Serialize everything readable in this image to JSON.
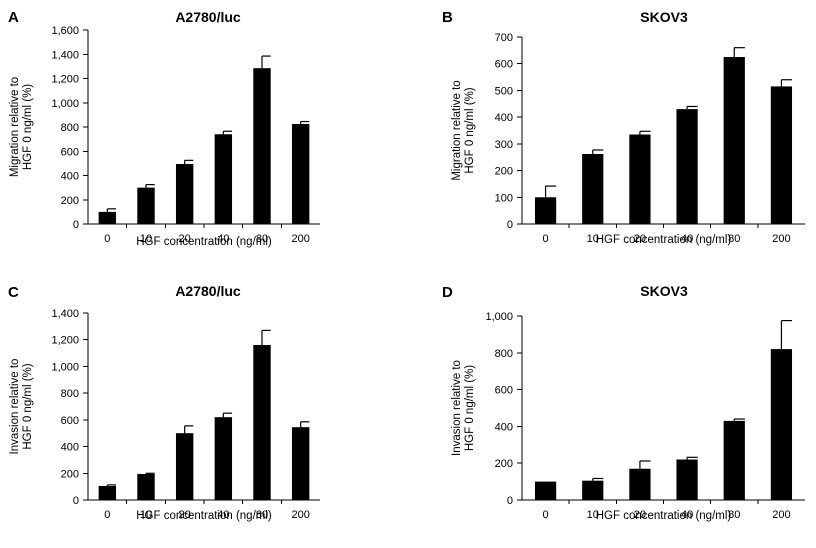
{
  "chart_data": [
    {
      "panel": "A",
      "type": "bar",
      "title": "A2780/luc",
      "xlabel": "HGF concentration (ng/ml)",
      "ylabel": [
        "Migration relative to",
        "HGF 0 ng/ml (%)"
      ],
      "categories": [
        "0",
        "10",
        "20",
        "40",
        "80",
        "200"
      ],
      "values": [
        100,
        300,
        495,
        740,
        1285,
        825
      ],
      "errors": [
        25,
        25,
        30,
        25,
        100,
        20
      ],
      "ylim": [
        0,
        1600
      ],
      "yticks": [
        0,
        200,
        400,
        600,
        800,
        1000,
        1200,
        1400,
        1600
      ],
      "ytick_labels": [
        "0",
        "200",
        "400",
        "600",
        "800",
        "1,000",
        "1,200",
        "1,400",
        "1,600"
      ]
    },
    {
      "panel": "B",
      "type": "bar",
      "title": "SKOV3",
      "xlabel": "HGF concentration (ng/ml)",
      "ylabel": [
        "Migration relative to",
        "HGF 0 ng/ml (%)"
      ],
      "categories": [
        "0",
        "10",
        "20",
        "40",
        "80",
        "200"
      ],
      "values": [
        100,
        262,
        335,
        430,
        625,
        515
      ],
      "errors": [
        42,
        15,
        12,
        10,
        35,
        25
      ],
      "ylim": [
        0,
        700
      ],
      "yticks": [
        0,
        100,
        200,
        300,
        400,
        500,
        600,
        700
      ],
      "ytick_labels": [
        "0",
        "100",
        "200",
        "300",
        "400",
        "500",
        "600",
        "700"
      ]
    },
    {
      "panel": "C",
      "type": "bar",
      "title": "A2780/luc",
      "xlabel": "HGF concentration (ng/ml)",
      "ylabel": [
        "Invasion relative to",
        "HGF 0 ng/ml (%)"
      ],
      "categories": [
        "0",
        "10",
        "20",
        "40",
        "80",
        "200"
      ],
      "values": [
        105,
        195,
        500,
        620,
        1160,
        545
      ],
      "errors": [
        8,
        5,
        55,
        30,
        110,
        40
      ],
      "ylim": [
        0,
        1400
      ],
      "yticks": [
        0,
        200,
        400,
        600,
        800,
        1000,
        1200,
        1400
      ],
      "ytick_labels": [
        "0",
        "200",
        "400",
        "600",
        "800",
        "1,000",
        "1,200",
        "1,400"
      ]
    },
    {
      "panel": "D",
      "type": "bar",
      "title": "SKOV3",
      "xlabel": "HGF concentration (ng/ml)",
      "ylabel": [
        "Invasion relative to",
        "HGF 0 ng/ml (%)"
      ],
      "categories": [
        "0",
        "10",
        "20",
        "40",
        "80",
        "200"
      ],
      "values": [
        100,
        105,
        170,
        220,
        430,
        820
      ],
      "errors": [
        0,
        12,
        42,
        12,
        10,
        155
      ],
      "ylim": [
        0,
        1000
      ],
      "yticks": [
        0,
        200,
        400,
        600,
        800,
        1000
      ],
      "ytick_labels": [
        "0",
        "200",
        "400",
        "600",
        "800",
        "1,000"
      ]
    }
  ]
}
